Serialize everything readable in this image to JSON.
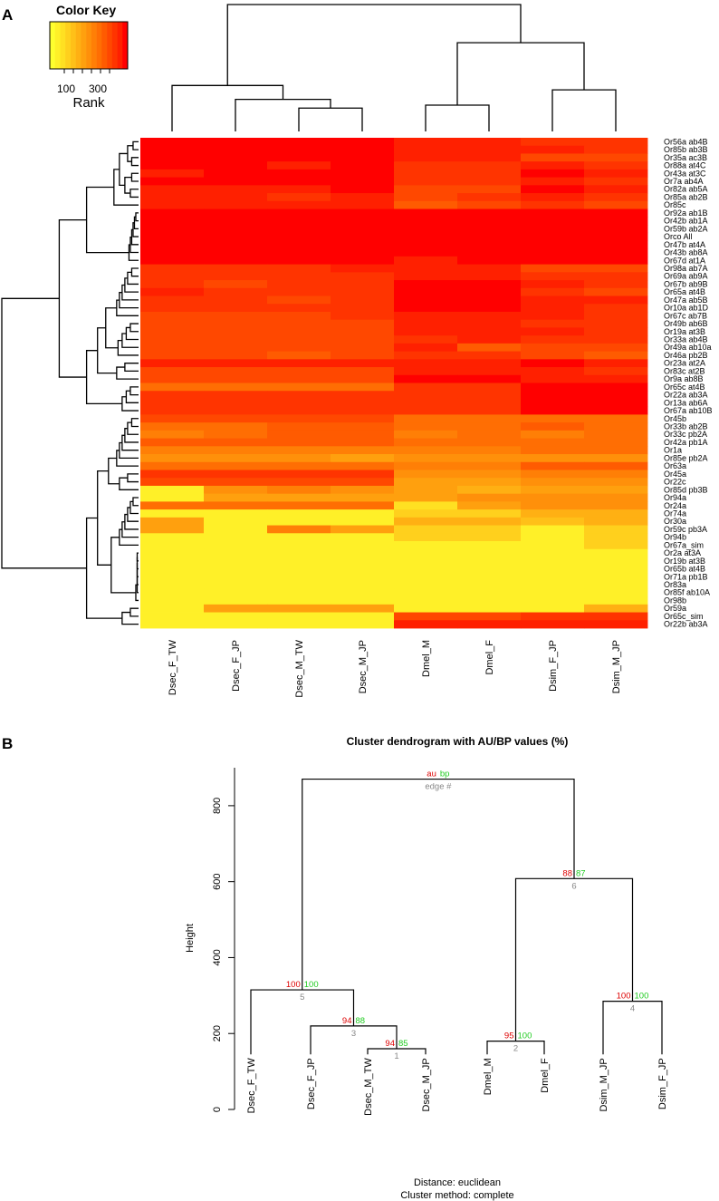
{
  "panel_a": {
    "label": "A",
    "color_key": {
      "title": "Color Key",
      "axis_label": "Rank",
      "ticks": [
        "100",
        "300"
      ],
      "colors": [
        "#ffff2e",
        "#fff028",
        "#ffe022",
        "#ffd01d",
        "#ffc018",
        "#ffb013",
        "#ffa00e",
        "#ff900a",
        "#ff7f06",
        "#ff6e03",
        "#ff5b01",
        "#ff4800",
        "#ff3400",
        "#ff2000",
        "#ff0000"
      ]
    }
  },
  "panel_b": {
    "label": "B",
    "title": "Cluster dendrogram with AU/BP values (%)",
    "legend": {
      "au": "au",
      "bp": "bp",
      "edge": "edge #"
    },
    "footer_distance": "Distance:  euclidean",
    "footer_method": "Cluster method: complete",
    "y_axis_label": "Height"
  },
  "colors": {
    "au": "#dd0000",
    "bp": "#22cc22",
    "edge": "#888888"
  },
  "chart_data": [
    {
      "type": "heatmap",
      "columns": [
        "Dsec_F_TW",
        "Dsec_F_JP",
        "Dsec_M_TW",
        "Dsec_M_JP",
        "Dmel_M",
        "Dmel_F",
        "Dsim_F_JP",
        "Dsim_M_JP"
      ],
      "rows": [
        "Or56a  ab4B",
        "Or85b  ab3B",
        "Or35a  ac3B",
        "Or88a  at4C",
        "Or43a  at3C",
        "Or7a  ab4A",
        "Or82a  ab5A",
        "Or85a  ab2B",
        "Or85c",
        "Or92a  ab1B",
        "Or42b  ab1A",
        "Or59b  ab2A",
        "Orco  All",
        "Or47b  at4A",
        "Or43b  ab8A",
        "Or67d  at1A",
        "Or98a  ab7A",
        "Or69a  ab9A",
        "Or67b  ab9B",
        "Or65a  at4B",
        "Or47a  ab5B",
        "Or10a  ab1D",
        "Or67c  ab7B",
        "Or49b  ab6B",
        "Or19a  at3B",
        "Or33a  ab4B",
        "Or49a  ab10a",
        "Or46a  pb2B",
        "Or23a  at2A",
        "Or83c  at2B",
        "Or9a  ab8B",
        "Or65c  at4B",
        "Or22a  ab3A",
        "Or13a  ab6A",
        "Or67a  ab10B",
        "Or45b",
        "Or33b  ab2B",
        "Or33c  pb2A",
        "Or42a  pb1A",
        "Or1a",
        "Or85e  pb2A",
        "Or63a",
        "Or45a",
        "Or22c",
        "Or85d  pb3B",
        "Or94a",
        "Or24a",
        "Or74a",
        "Or30a",
        "Or59c  pb3A",
        "Or94b",
        "Or67a_sim",
        "Or2a  at3A",
        "Or19b  at3B",
        "Or65b  at4B",
        "Or71a  pb1B",
        "Or83a",
        "Or85f  ab10A",
        "Or98b",
        "Or59a",
        "Or65c_sim",
        "Or22b  ab3A"
      ],
      "values": [
        [
          14,
          14,
          14,
          14,
          13,
          13,
          12,
          12
        ],
        [
          14,
          14,
          14,
          14,
          13,
          13,
          13,
          12
        ],
        [
          14,
          14,
          14,
          14,
          13,
          13,
          11,
          11
        ],
        [
          14,
          14,
          13,
          14,
          12,
          12,
          13,
          12
        ],
        [
          13,
          14,
          14,
          14,
          12,
          12,
          14,
          13
        ],
        [
          14,
          14,
          14,
          14,
          12,
          12,
          13,
          12
        ],
        [
          13,
          13,
          13,
          14,
          11,
          11,
          14,
          13
        ],
        [
          13,
          13,
          12,
          13,
          11,
          12,
          13,
          12
        ],
        [
          13,
          13,
          13,
          13,
          10,
          11,
          12,
          11
        ],
        [
          14,
          14,
          14,
          14,
          14,
          14,
          14,
          14
        ],
        [
          14,
          14,
          14,
          14,
          14,
          14,
          14,
          14
        ],
        [
          14,
          14,
          14,
          14,
          14,
          14,
          14,
          14
        ],
        [
          14,
          14,
          14,
          14,
          14,
          14,
          14,
          14
        ],
        [
          14,
          14,
          14,
          14,
          14,
          14,
          14,
          14
        ],
        [
          14,
          14,
          14,
          14,
          14,
          14,
          14,
          14
        ],
        [
          14,
          14,
          14,
          14,
          13,
          14,
          14,
          14
        ],
        [
          12,
          12,
          12,
          13,
          13,
          13,
          11,
          11
        ],
        [
          12,
          12,
          12,
          12,
          13,
          13,
          12,
          12
        ],
        [
          12,
          11,
          12,
          12,
          14,
          14,
          13,
          12
        ],
        [
          13,
          12,
          12,
          12,
          14,
          14,
          12,
          11
        ],
        [
          12,
          12,
          11,
          12,
          14,
          14,
          13,
          13
        ],
        [
          12,
          12,
          12,
          12,
          14,
          14,
          13,
          12
        ],
        [
          11,
          11,
          11,
          12,
          13,
          13,
          13,
          12
        ],
        [
          11,
          11,
          11,
          11,
          13,
          13,
          12,
          12
        ],
        [
          11,
          11,
          11,
          11,
          13,
          13,
          13,
          12
        ],
        [
          11,
          11,
          11,
          11,
          12,
          13,
          12,
          12
        ],
        [
          11,
          11,
          11,
          11,
          13,
          10,
          11,
          11
        ],
        [
          11,
          11,
          10,
          11,
          12,
          12,
          11,
          10
        ],
        [
          13,
          13,
          13,
          13,
          13,
          13,
          14,
          13
        ],
        [
          11,
          11,
          11,
          11,
          13,
          13,
          13,
          12
        ],
        [
          11,
          11,
          11,
          11,
          14,
          14,
          13,
          13
        ],
        [
          9,
          9,
          9,
          9,
          12,
          12,
          14,
          14
        ],
        [
          12,
          12,
          12,
          12,
          12,
          12,
          14,
          14
        ],
        [
          12,
          12,
          12,
          12,
          12,
          12,
          14,
          14
        ],
        [
          12,
          12,
          12,
          12,
          12,
          12,
          14,
          14
        ],
        [
          11,
          11,
          11,
          11,
          9,
          9,
          9,
          9
        ],
        [
          9,
          9,
          10,
          10,
          9,
          9,
          10,
          9
        ],
        [
          8,
          9,
          10,
          10,
          8,
          9,
          8,
          9
        ],
        [
          10,
          10,
          10,
          10,
          9,
          9,
          9,
          9
        ],
        [
          8,
          8,
          8,
          8,
          8,
          8,
          9,
          9
        ],
        [
          7,
          7,
          7,
          6,
          7,
          7,
          7,
          7
        ],
        [
          9,
          9,
          9,
          9,
          8,
          8,
          10,
          10
        ],
        [
          12,
          12,
          12,
          12,
          7,
          7,
          8,
          8
        ],
        [
          11,
          11,
          11,
          11,
          6,
          6,
          7,
          7
        ],
        [
          1,
          7,
          8,
          7,
          6,
          5,
          6,
          6
        ],
        [
          1,
          6,
          6,
          6,
          6,
          7,
          7,
          7
        ],
        [
          9,
          9,
          9,
          9,
          2,
          6,
          7,
          7
        ],
        [
          1,
          1,
          1,
          1,
          3,
          3,
          5,
          5
        ],
        [
          6,
          1,
          1,
          1,
          5,
          5,
          4,
          5
        ],
        [
          6,
          1,
          8,
          6,
          3,
          3,
          1,
          3
        ],
        [
          1,
          1,
          1,
          1,
          3,
          3,
          1,
          3
        ],
        [
          1,
          1,
          1,
          1,
          1,
          1,
          1,
          3
        ],
        [
          1,
          1,
          1,
          1,
          1,
          1,
          1,
          1
        ],
        [
          1,
          1,
          1,
          1,
          1,
          1,
          1,
          1
        ],
        [
          1,
          1,
          1,
          1,
          1,
          1,
          1,
          1
        ],
        [
          1,
          1,
          1,
          1,
          1,
          1,
          1,
          1
        ],
        [
          1,
          1,
          1,
          1,
          1,
          1,
          1,
          1
        ],
        [
          1,
          1,
          1,
          1,
          1,
          1,
          1,
          1
        ],
        [
          1,
          1,
          1,
          1,
          1,
          1,
          1,
          1
        ],
        [
          1,
          6,
          6,
          6,
          1,
          1,
          1,
          5
        ],
        [
          1,
          1,
          1,
          1,
          11,
          11,
          12,
          12
        ],
        [
          1,
          1,
          1,
          1,
          13,
          13,
          13,
          13
        ]
      ]
    },
    {
      "type": "dendrogram",
      "title": "Cluster dendrogram with AU/BP values (%)",
      "ylabel": "Height",
      "ylim": [
        0,
        900
      ],
      "yticks": [
        0,
        200,
        400,
        600,
        800
      ],
      "leaves": [
        "Dsec_F_TW",
        "Dsec_F_JP",
        "Dsec_M_TW",
        "Dsec_M_JP",
        "Dmel_M",
        "Dmel_F",
        "Dsim_M_JP",
        "Dsim_F_JP"
      ],
      "merges": [
        {
          "edge": "1",
          "height": 160,
          "au": "94",
          "bp": "85",
          "left": 2,
          "right": 3
        },
        {
          "edge": "2",
          "height": 180,
          "au": "95",
          "bp": "100",
          "left": 4,
          "right": 5
        },
        {
          "edge": "3",
          "height": 220,
          "au": "94",
          "bp": "88",
          "left": 1,
          "right": "e1"
        },
        {
          "edge": "4",
          "height": 285,
          "au": "100",
          "bp": "100",
          "left": 6,
          "right": 7
        },
        {
          "edge": "5",
          "height": 315,
          "au": "100",
          "bp": "100",
          "left": 0,
          "right": "e3"
        },
        {
          "edge": "6",
          "height": 608,
          "au": "88",
          "bp": "87",
          "left": "e2",
          "right": "e4"
        },
        {
          "edge": "",
          "height": 870,
          "au": "au",
          "bp": "bp",
          "left": "e5",
          "right": "e6"
        }
      ]
    }
  ]
}
